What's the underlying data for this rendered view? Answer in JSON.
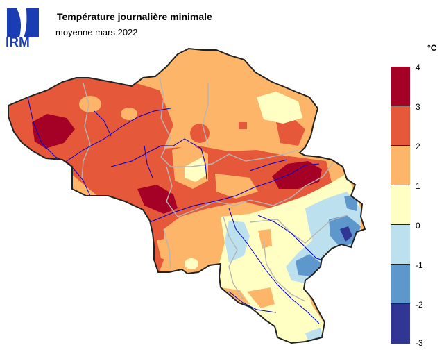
{
  "logo": {
    "text": "IRM",
    "color": "#1a3db3"
  },
  "title": "Température journalière minimale",
  "subtitle": "moyenne mars 2022",
  "legend": {
    "unit": "°C",
    "ticks": [
      "4",
      "3",
      "2",
      "1",
      "0",
      "-1",
      "-2",
      "-3"
    ],
    "classes": [
      {
        "range": "3 to 4",
        "color": "#a50026"
      },
      {
        "range": "2 to 3",
        "color": "#e5593a"
      },
      {
        "range": "1 to 2",
        "color": "#fdb56a"
      },
      {
        "range": "0 to 1",
        "color": "#ffffc4"
      },
      {
        "range": "-1 to 0",
        "color": "#bde0ee"
      },
      {
        "range": "-2 to -1",
        "color": "#5d97cc"
      },
      {
        "range": "-3 to -2",
        "color": "#313695"
      }
    ]
  },
  "map": {
    "region": "Belgium",
    "rivers_color": "#0000cc",
    "borders_color": "#b5b5b5"
  }
}
